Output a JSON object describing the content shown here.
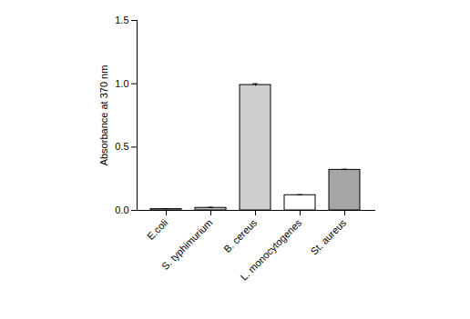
{
  "chart_data": {
    "type": "bar",
    "y_label": "Absorbance at 370 nm",
    "categories": [
      "E.coli",
      "S. typhimurium",
      "B. cereus",
      "L. monocytogenes",
      "St. aureus"
    ],
    "values": [
      0.01,
      0.02,
      0.99,
      0.12,
      0.32
    ],
    "errors": [
      0.003,
      0.004,
      0.01,
      0.004,
      0.005
    ],
    "colors": [
      "#d9d9d9",
      "#bfbfbf",
      "#cfcfcf",
      "#ffffff",
      "#a6a6a6"
    ],
    "ylim": [
      0,
      1.5
    ],
    "yticks": [
      {
        "value": 0,
        "label": "0.0"
      },
      {
        "value": 0.5,
        "label": "0.5"
      },
      {
        "value": 1,
        "label": "1.0"
      },
      {
        "value": 1.5,
        "label": "1.5"
      }
    ],
    "grid": false
  }
}
